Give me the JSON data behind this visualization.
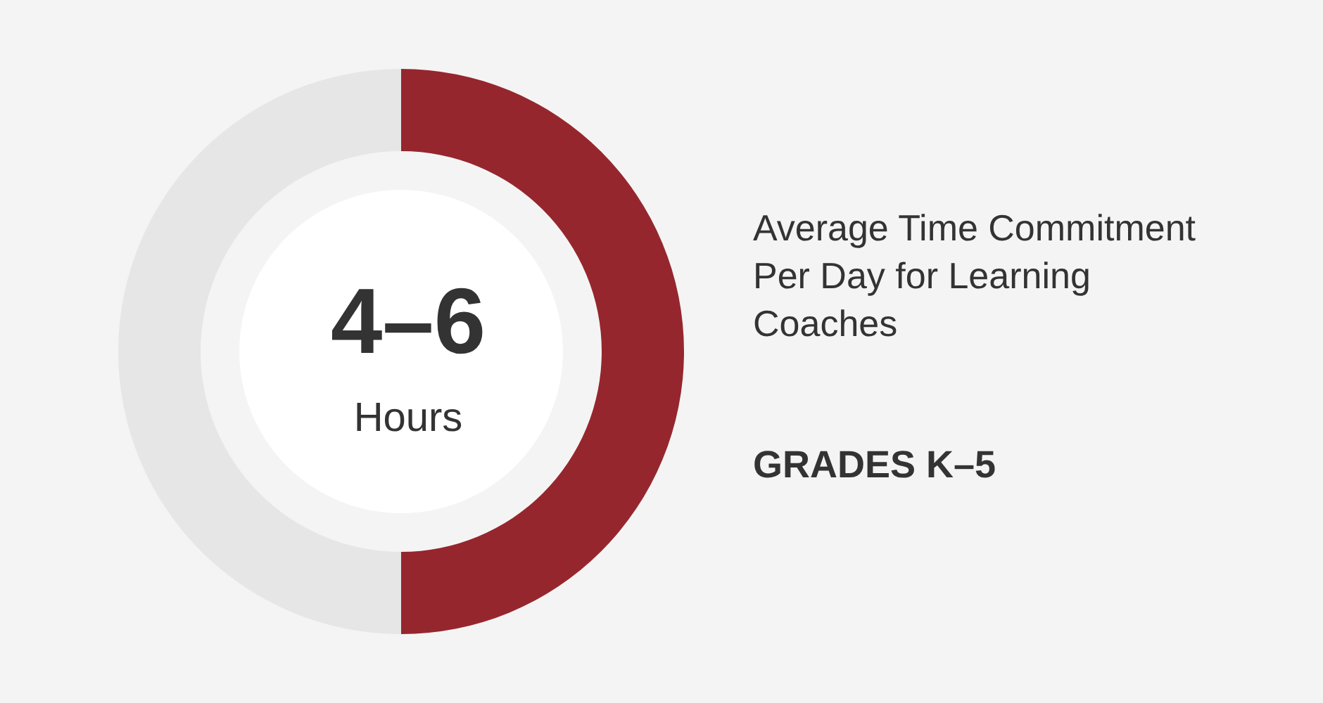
{
  "chart_data": {
    "type": "donut",
    "title": "Average Time Commitment Per Day for Learning Coaches",
    "subtitle": "GRADES K–5",
    "categories": [
      null,
      null
    ],
    "values": [
      50,
      50
    ],
    "colors": [
      "#96262d",
      "#e6e6e6"
    ],
    "annotations": [
      "4–6",
      "Hours"
    ]
  }
}
